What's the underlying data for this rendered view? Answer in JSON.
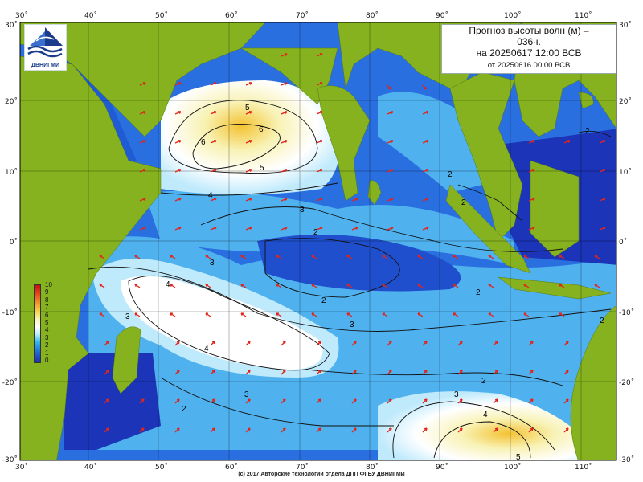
{
  "title": {
    "line1": "Прогноз высоты волн (м) –",
    "line1b": "036ч.",
    "line2": "на 20250617 12:00 ВСВ",
    "line3": "от 20250616 00:00 ВСВ"
  },
  "logo": {
    "text": "ДВНИГМИ"
  },
  "copyright": "(c) 2017 Авторские технологии отдела ДПП ФГБУ ДВНИГМИ",
  "axes": {
    "top": [
      "30˚",
      "40˚",
      "50˚",
      "60˚",
      "70˚",
      "80˚",
      "90˚",
      "100˚",
      "110˚"
    ],
    "bottom": [
      "30˚",
      "40˚",
      "50˚",
      "60˚",
      "70˚",
      "80˚",
      "90˚",
      "100˚",
      "110˚"
    ],
    "left": [
      "30˚",
      "20˚",
      "10˚",
      "0˚",
      "-10˚",
      "-20˚",
      "-30˚"
    ],
    "right": [
      "30˚",
      "20˚",
      "10˚",
      "0˚",
      "-10˚",
      "-20˚",
      "-30˚"
    ]
  },
  "legend": {
    "labels": [
      "10",
      "9",
      "8",
      "7",
      "6",
      "5",
      "4",
      "3",
      "2",
      "1",
      "0"
    ]
  },
  "contour_labels": [
    "5",
    "6",
    "6",
    "5",
    "4",
    "3",
    "2",
    "3",
    "2",
    "2",
    "2",
    "2",
    "2",
    "4",
    "3",
    "4",
    "3",
    "2",
    "3",
    "2",
    "2",
    "4",
    "5",
    "2",
    "3"
  ],
  "colors": {
    "land": "#86b21f",
    "sea_dark": "#1c34b8",
    "sea_mid": "#2a6fe0",
    "sea_light": "#4fb2ef",
    "sea_pale": "#bfeafc",
    "white_zone": "#ffffff",
    "yellow_zone": "#f8f2b4",
    "orange_zone": "#f4c232",
    "arrow": "#e3241b"
  }
}
